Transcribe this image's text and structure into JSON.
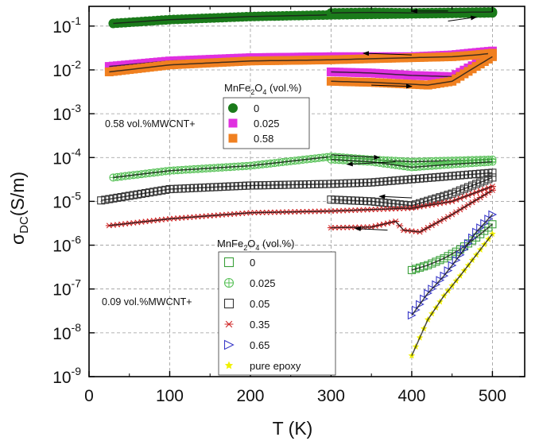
{
  "chart_data": {
    "type": "scatter",
    "xlabel": "T (K)",
    "ylabel_main": "σ",
    "ylabel_sub": "DC",
    "ylabel_unit": "(S/m)",
    "xlim": [
      0,
      540
    ],
    "ylim_log10": [
      -9,
      -0.55
    ],
    "yscale": "log",
    "grid": true,
    "x_ticks": [
      0,
      100,
      200,
      300,
      400,
      500
    ],
    "x_minor_ticks": [
      50,
      150,
      250,
      350,
      450
    ],
    "y_ticks": [
      {
        "exp": -1,
        "base": "10",
        "label_exp": "-1"
      },
      {
        "exp": -2,
        "base": "10",
        "label_exp": "-2"
      },
      {
        "exp": -3,
        "base": "10",
        "label_exp": "-3"
      },
      {
        "exp": -4,
        "base": "10",
        "label_exp": "-4"
      },
      {
        "exp": -5,
        "base": "10",
        "label_exp": "-5"
      },
      {
        "exp": -6,
        "base": "10",
        "label_exp": "-6"
      },
      {
        "exp": -7,
        "base": "10",
        "label_exp": "-7"
      },
      {
        "exp": -8,
        "base": "10",
        "label_exp": "-8"
      },
      {
        "exp": -9,
        "base": "10",
        "label_exp": "-9"
      }
    ],
    "legends": [
      {
        "title_pre": "MnFe",
        "title_sub": "2",
        "title_mid": "O",
        "title_sub2": "4",
        "title_post": " (vol.%)",
        "annotation": "0.58 vol.%MWCNT+",
        "entries": [
          {
            "label": "0",
            "marker": "filled-circle",
            "color": "#1a7a1a"
          },
          {
            "label": "0.025",
            "marker": "filled-square",
            "color": "#e030e0"
          },
          {
            "label": "0.58",
            "marker": "filled-square",
            "color": "#f08020"
          }
        ]
      },
      {
        "title_pre": "MnFe",
        "title_sub": "2",
        "title_mid": "O",
        "title_sub2": "4",
        "title_post": " (vol.%)",
        "annotation": "0.09 vol.%MWCNT+",
        "entries": [
          {
            "label": "0",
            "marker": "open-square",
            "color": "#3aa03a"
          },
          {
            "label": "0.025",
            "marker": "circle-plus",
            "color": "#55c055"
          },
          {
            "label": "0.05",
            "marker": "open-square",
            "color": "#333333"
          },
          {
            "label": "0.35",
            "marker": "asterisk",
            "color": "#d02828"
          },
          {
            "label": "0.65",
            "marker": "open-triangle",
            "color": "#3a3ac8"
          },
          {
            "label": "pure epoxy",
            "marker": "filled-star",
            "color": "#f0f000"
          }
        ]
      }
    ],
    "series": [
      {
        "name": "0",
        "group": "0.58 vol.%MWCNT+",
        "color": "#1a7a1a",
        "marker": "filled-circle",
        "heating": [
          [
            30,
            0.115
          ],
          [
            100,
            0.14
          ],
          [
            200,
            0.165
          ],
          [
            300,
            0.18
          ],
          [
            350,
            0.185
          ],
          [
            400,
            0.19
          ],
          [
            450,
            0.195
          ],
          [
            500,
            0.2
          ]
        ],
        "cooling": [
          [
            500,
            0.21
          ],
          [
            450,
            0.205
          ],
          [
            400,
            0.2
          ],
          [
            350,
            0.205
          ],
          [
            300,
            0.2
          ]
        ]
      },
      {
        "name": "0.025",
        "group": "0.58 vol.%MWCNT+",
        "color": "#e030e0",
        "marker": "filled-square",
        "heating": [
          [
            25,
            0.012
          ],
          [
            100,
            0.016
          ],
          [
            200,
            0.019
          ],
          [
            300,
            0.02
          ],
          [
            350,
            0.02
          ],
          [
            400,
            0.02
          ],
          [
            450,
            0.022
          ],
          [
            480,
            0.025
          ],
          [
            500,
            0.027
          ]
        ],
        "cooling": [
          [
            500,
            0.022
          ],
          [
            480,
            0.014
          ],
          [
            450,
            0.007
          ],
          [
            400,
            0.0075
          ],
          [
            350,
            0.0085
          ],
          [
            300,
            0.009
          ]
        ]
      },
      {
        "name": "0.58",
        "group": "0.58 vol.%MWCNT+",
        "color": "#f08020",
        "marker": "filled-square",
        "heating": [
          [
            25,
            0.009
          ],
          [
            100,
            0.013
          ],
          [
            200,
            0.016
          ],
          [
            300,
            0.017
          ],
          [
            350,
            0.018
          ],
          [
            400,
            0.019
          ],
          [
            450,
            0.02
          ],
          [
            480,
            0.022
          ],
          [
            500,
            0.024
          ]
        ],
        "cooling": [
          [
            500,
            0.02
          ],
          [
            480,
            0.012
          ],
          [
            450,
            0.0055
          ],
          [
            420,
            0.0045
          ],
          [
            400,
            0.0047
          ],
          [
            350,
            0.0052
          ],
          [
            300,
            0.0055
          ]
        ]
      },
      {
        "name": "0",
        "group": "0.09 vol.%MWCNT+",
        "color": "#3aa03a",
        "marker": "open-square",
        "heating": [
          [
            400,
            2.7e-07
          ],
          [
            420,
            3.5e-07
          ],
          [
            440,
            5e-07
          ],
          [
            460,
            8e-07
          ],
          [
            480,
            1.5e-06
          ],
          [
            500,
            3e-06
          ]
        ]
      },
      {
        "name": "0.025",
        "group": "0.09 vol.%MWCNT+",
        "color": "#55c055",
        "marker": "circle-plus",
        "heating": [
          [
            30,
            3.5e-05
          ],
          [
            100,
            5e-05
          ],
          [
            200,
            6.5e-05
          ],
          [
            300,
            0.000105
          ],
          [
            350,
            9e-05
          ],
          [
            400,
            8e-05
          ],
          [
            450,
            8.5e-05
          ],
          [
            500,
            9e-05
          ]
        ],
        "cooling": [
          [
            500,
            8e-05
          ],
          [
            450,
            7e-05
          ],
          [
            400,
            6e-05
          ],
          [
            350,
            8e-05
          ],
          [
            300,
            9e-05
          ]
        ]
      },
      {
        "name": "0.05",
        "group": "0.09 vol.%MWCNT+",
        "color": "#333333",
        "marker": "open-square",
        "heating": [
          [
            15,
            1.05e-05
          ],
          [
            100,
            1.9e-05
          ],
          [
            200,
            2.3e-05
          ],
          [
            300,
            2.5e-05
          ],
          [
            350,
            2.7e-05
          ],
          [
            400,
            3.2e-05
          ],
          [
            450,
            3.8e-05
          ],
          [
            500,
            4.5e-05
          ]
        ],
        "cooling": [
          [
            500,
            3.5e-05
          ],
          [
            450,
            1.5e-05
          ],
          [
            400,
            8e-06
          ],
          [
            350,
            1e-05
          ],
          [
            300,
            1.1e-05
          ]
        ]
      },
      {
        "name": "0.35",
        "group": "0.09 vol.%MWCNT+",
        "color": "#d02828",
        "marker": "asterisk",
        "heating": [
          [
            25,
            2.8e-06
          ],
          [
            100,
            4e-06
          ],
          [
            200,
            5.5e-06
          ],
          [
            300,
            6e-06
          ],
          [
            350,
            6.5e-06
          ],
          [
            400,
            7e-06
          ],
          [
            450,
            1e-05
          ],
          [
            500,
            2.2e-05
          ]
        ],
        "cooling": [
          [
            500,
            1.8e-05
          ],
          [
            450,
            5e-06
          ],
          [
            410,
            2e-06
          ],
          [
            390,
            2.2e-06
          ],
          [
            380,
            3.5e-06
          ],
          [
            350,
            2.6e-06
          ],
          [
            300,
            2.5e-06
          ]
        ]
      },
      {
        "name": "0.65",
        "group": "0.09 vol.%MWCNT+",
        "color": "#3a3ac8",
        "marker": "open-triangle",
        "heating": [
          [
            400,
            2.5e-08
          ],
          [
            420,
            8e-08
          ],
          [
            440,
            2e-07
          ],
          [
            460,
            6e-07
          ],
          [
            480,
            2e-06
          ],
          [
            500,
            5e-06
          ]
        ]
      },
      {
        "name": "pure epoxy",
        "group": "0.09 vol.%MWCNT+",
        "color": "#f0f000",
        "marker": "filled-star",
        "heating": [
          [
            400,
            3e-09
          ],
          [
            420,
            2e-08
          ],
          [
            440,
            7e-08
          ],
          [
            460,
            2e-07
          ],
          [
            480,
            6e-07
          ],
          [
            500,
            1.8e-06
          ]
        ]
      }
    ]
  }
}
